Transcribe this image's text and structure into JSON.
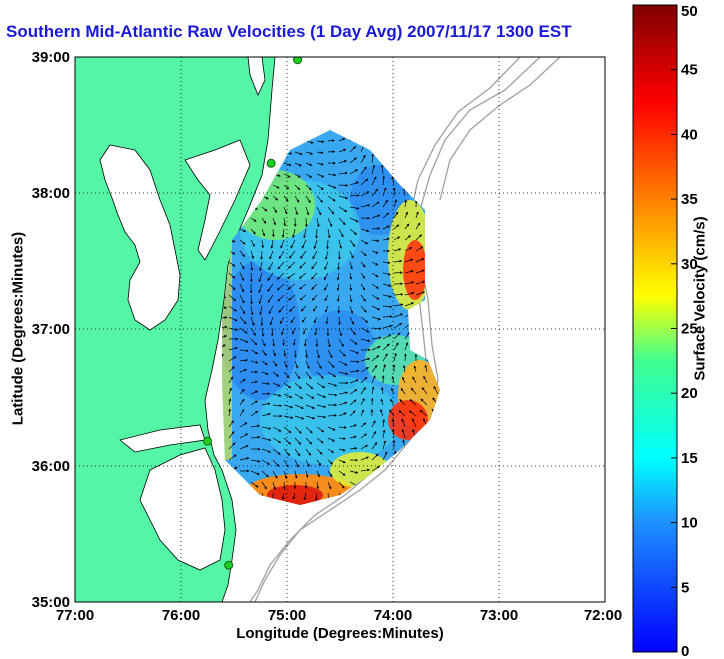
{
  "title": "Southern Mid-Atlantic Raw Velocities (1 Day Avg) 2007/11/17 1300 EST",
  "xlabel": "Longitude (Degrees:Minutes)",
  "ylabel": "Latitude (Degrees:Minutes)",
  "colorbar": {
    "label": "Surface Velocity (cm/s)",
    "min": 0,
    "max": 50,
    "ticks": [
      "0",
      "5",
      "10",
      "15",
      "20",
      "25",
      "30",
      "35",
      "40",
      "45",
      "50"
    ]
  },
  "axes": {
    "lon_ticks": [
      "77:00",
      "76:00",
      "75:00",
      "74:00",
      "73:00",
      "72:00"
    ],
    "lat_ticks": [
      "39:00",
      "38:00",
      "37:00",
      "36:00",
      "35:00"
    ],
    "lon_range": [
      -77,
      -72
    ],
    "lat_range": [
      35,
      39
    ]
  },
  "colors": {
    "land": "#55f5a6",
    "coast_line": "#000000",
    "bathymetry": "#a0a0a0",
    "title": "#1a1ad6",
    "station": "#22cc22"
  },
  "stations": [
    {
      "name": "station",
      "lon": -74.9,
      "lat": 38.98
    },
    {
      "name": "station",
      "lon": -75.15,
      "lat": 38.22
    },
    {
      "name": "station",
      "lon": -75.75,
      "lat": 36.18
    },
    {
      "name": "station",
      "lon": -75.55,
      "lat": 35.27
    }
  ]
}
